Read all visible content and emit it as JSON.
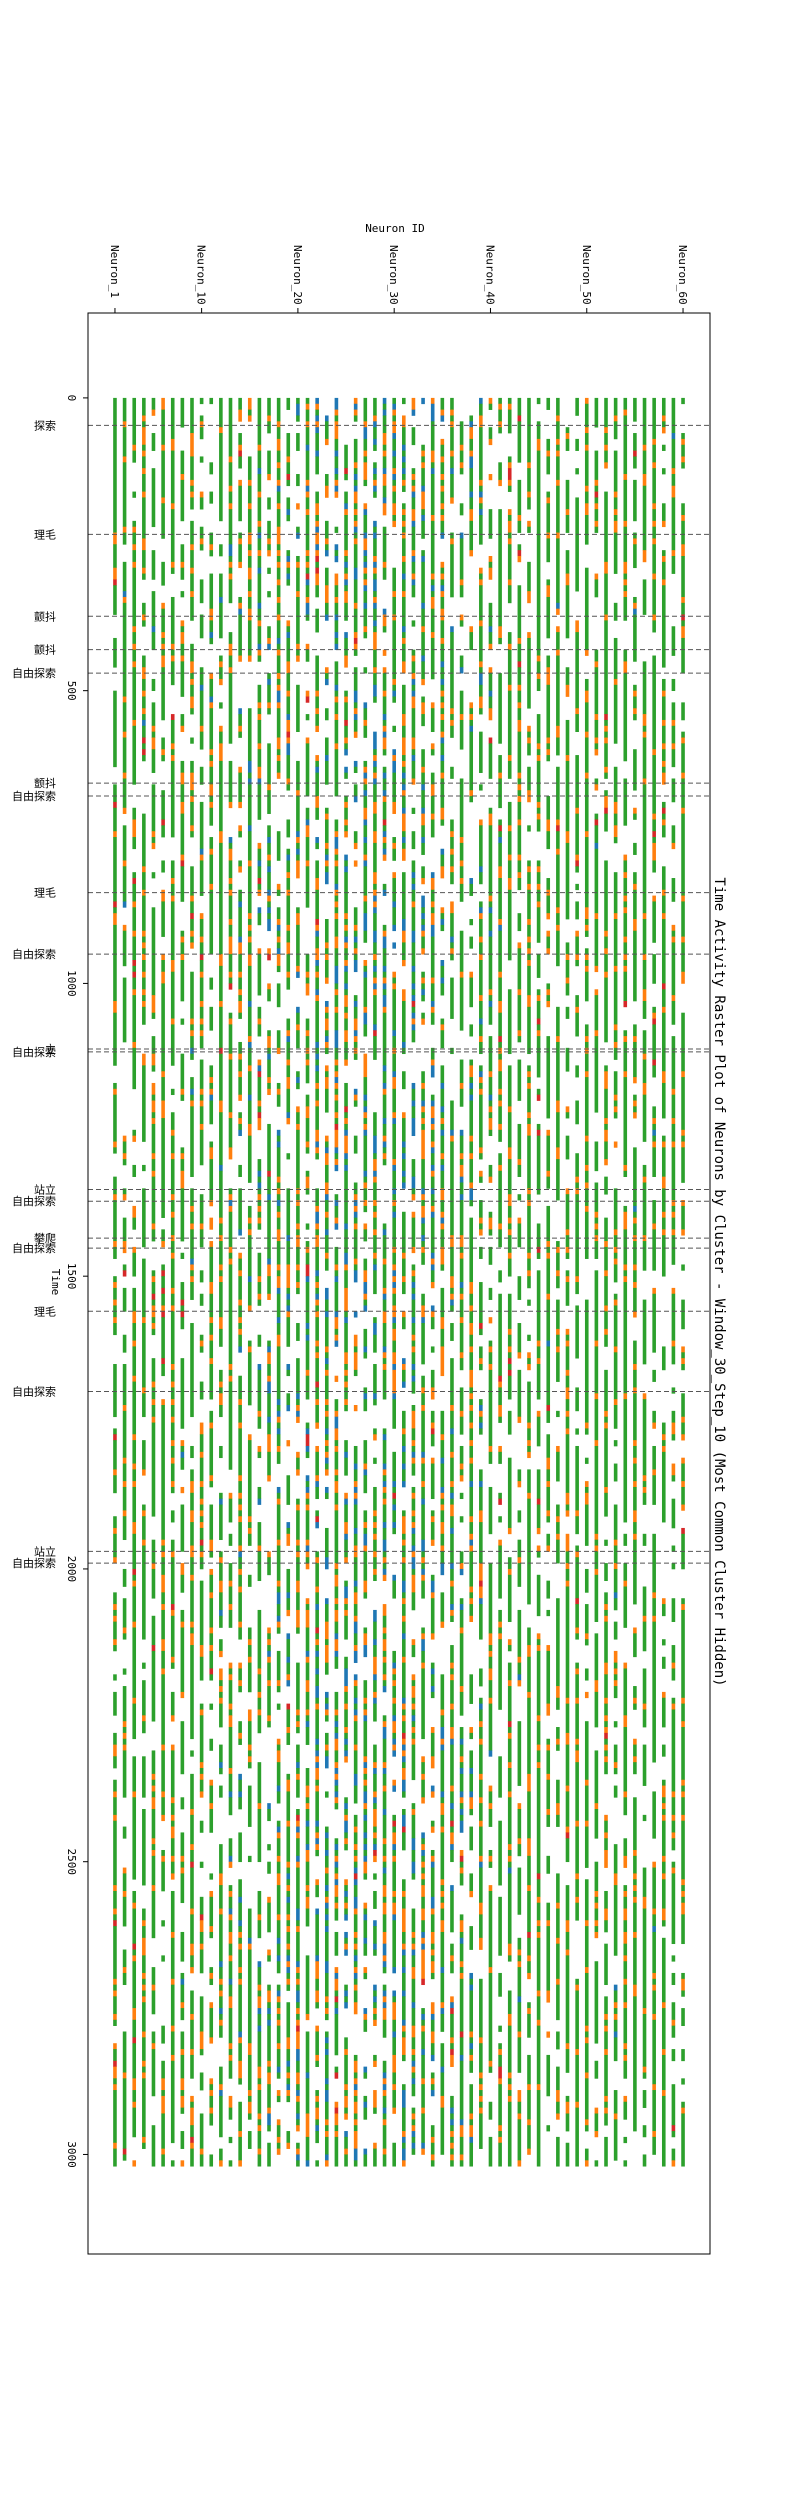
{
  "chart_data": {
    "type": "scatter",
    "title": "Time Activity Raster Plot of Neurons by Cluster - Window_30_Step_10 (Most Common Cluster Hidden)",
    "xlabel": "Neuron ID",
    "ylabel": "Time",
    "xlim": [
      -1.8,
      62.8
    ],
    "ylim": [
      -145,
      3170
    ],
    "x_tick_labels": [
      "Neuron_1",
      "Neuron_10",
      "Neuron_20",
      "Neuron_30",
      "Neuron_40",
      "Neuron_50",
      "Neuron_60"
    ],
    "x_tick_values": [
      1,
      10,
      20,
      30,
      40,
      50,
      60
    ],
    "y_ticks": [
      0,
      500,
      1000,
      1500,
      2000,
      2500,
      3000
    ],
    "neuron_count": 60,
    "time_range": [
      0,
      3020
    ],
    "bin_size_time": 10,
    "grid": false,
    "legend": "none",
    "series_colors": {
      "cluster_green": "#2ca02c",
      "cluster_orange": "#ff7f0e",
      "cluster_blue": "#1f77b4",
      "cluster_red": "#d62728"
    },
    "behavior_events": [
      {
        "time": 47,
        "label": "探索"
      },
      {
        "time": 233,
        "label": "理毛"
      },
      {
        "time": 373,
        "label": "颤抖"
      },
      {
        "time": 430,
        "label": "颤抖"
      },
      {
        "time": 470,
        "label": "自由探索"
      },
      {
        "time": 658,
        "label": "颤抖"
      },
      {
        "time": 680,
        "label": "自由探索"
      },
      {
        "time": 845,
        "label": "理毛"
      },
      {
        "time": 950,
        "label": "自由探索"
      },
      {
        "time": 1112,
        "label": "立"
      },
      {
        "time": 1117,
        "label": "自由探索"
      },
      {
        "time": 1352,
        "label": "站立"
      },
      {
        "time": 1372,
        "label": "自由探索"
      },
      {
        "time": 1435,
        "label": "攀爬"
      },
      {
        "time": 1452,
        "label": "自由探索"
      },
      {
        "time": 1560,
        "label": "理毛"
      },
      {
        "time": 1697,
        "label": "自由探索"
      },
      {
        "time": 1970,
        "label": "站立"
      },
      {
        "time": 1990,
        "label": "自由探索"
      }
    ]
  }
}
